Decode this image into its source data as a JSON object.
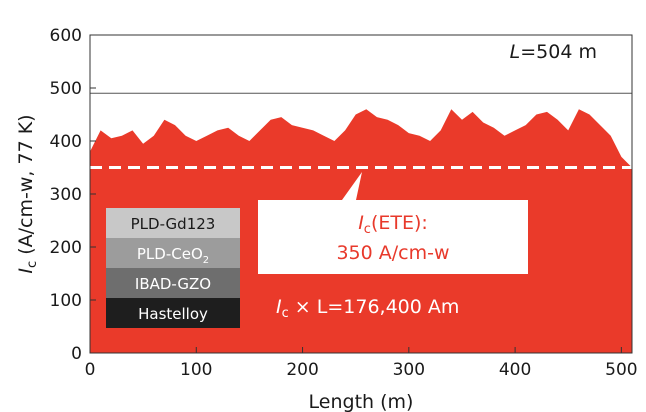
{
  "chart_data": {
    "type": "area",
    "xlabel": "Length (m)",
    "ylabel": "I_c (A/cm-w, 77 K)",
    "ylabel_parts": {
      "symbol": "I",
      "sub": "c",
      "rest": " (A/cm-w, 77 K)"
    },
    "xlim": [
      0,
      510
    ],
    "ylim": [
      0,
      600
    ],
    "xticks": [
      0,
      100,
      200,
      300,
      400,
      500
    ],
    "yticks": [
      0,
      100,
      200,
      300,
      400,
      500,
      600
    ],
    "series": [
      {
        "x": [
          0,
          10,
          20,
          30,
          40,
          50,
          60,
          70,
          80,
          90,
          100,
          110,
          120,
          130,
          140,
          150,
          160,
          170,
          180,
          190,
          200,
          210,
          220,
          230,
          240,
          250,
          260,
          270,
          280,
          290,
          300,
          310,
          320,
          330,
          340,
          350,
          360,
          370,
          380,
          390,
          400,
          410,
          420,
          430,
          440,
          450,
          460,
          470,
          480,
          490,
          500,
          510
        ],
        "values": [
          380,
          420,
          405,
          410,
          420,
          395,
          410,
          440,
          430,
          410,
          400,
          410,
          420,
          425,
          410,
          400,
          420,
          440,
          445,
          430,
          425,
          420,
          410,
          400,
          420,
          450,
          460,
          445,
          440,
          430,
          415,
          410,
          400,
          420,
          460,
          440,
          455,
          435,
          425,
          410,
          420,
          430,
          450,
          455,
          440,
          420,
          460,
          450,
          430,
          410,
          370,
          350
        ],
        "color": "#ea3a2a"
      }
    ],
    "threshold": {
      "value": 350,
      "style": "dashed",
      "color": "#ffffff"
    },
    "reference_line": {
      "value": 490
    },
    "annotations": {
      "length_label": {
        "prefix": "L",
        "text": "=504 m"
      },
      "ete_label": {
        "symbol": "I",
        "sub": "c",
        "line1": "(ETE):",
        "line2": "350 A/cm-w"
      },
      "product_label": {
        "symbol": "I",
        "sub": "c",
        "text": " × L=176,400 Am"
      }
    },
    "layer_stack": [
      {
        "label": "PLD-Gd123",
        "bg": "#c8c8c8",
        "fg": "#1a1a1a"
      },
      {
        "label": "PLD-CeO",
        "sub": "2",
        "bg": "#9c9c9c",
        "fg": "#ffffff"
      },
      {
        "label": "IBAD-GZO",
        "bg": "#6e6e6e",
        "fg": "#ffffff"
      },
      {
        "label": "Hastelloy",
        "bg": "#1e1e1e",
        "fg": "#ffffff"
      }
    ],
    "grid": false,
    "legend": "none"
  }
}
